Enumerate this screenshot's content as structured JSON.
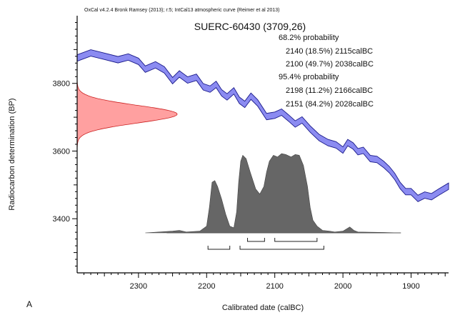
{
  "chart_data": {
    "type": "area",
    "header": "OxCal v4.2.4 Bronk Ramsey (2013); r:5; IntCal13 atmospheric curve (Reimer et al 2013)",
    "title": "SUERC-60430 (3709,26)",
    "xlabel": "Calibrated date (calBC)",
    "ylabel": "Radiocarbon determination (BP)",
    "panel_label": "A",
    "xlim": [
      2390,
      1845
    ],
    "ylim": [
      3240,
      4000
    ],
    "x_ticks": [
      2300,
      2200,
      2100,
      2000,
      1900
    ],
    "y_ticks": [
      3400,
      3600,
      3800
    ],
    "annotations": [
      "68.2% probability",
      "2140 (18.5%) 2115calBC",
      "2100 (49.7%) 2038calBC",
      "95.4% probability",
      "2198 (11.2%) 2166calBC",
      "2151 (84.2%) 2028calBC"
    ],
    "measurement": {
      "mean": 3709,
      "sd": 26
    },
    "ranges_68": [
      [
        2140,
        2115
      ],
      [
        2100,
        2038
      ]
    ],
    "ranges_95": [
      [
        2198,
        2166
      ],
      [
        2151,
        2028
      ]
    ],
    "calibration_curve": {
      "name": "IntCal13",
      "color": "#6666ee",
      "points": [
        [
          2390,
          3875
        ],
        [
          2370,
          3890
        ],
        [
          2350,
          3880
        ],
        [
          2330,
          3870
        ],
        [
          2315,
          3878
        ],
        [
          2300,
          3865
        ],
        [
          2290,
          3842
        ],
        [
          2275,
          3855
        ],
        [
          2262,
          3840
        ],
        [
          2250,
          3808
        ],
        [
          2240,
          3828
        ],
        [
          2228,
          3810
        ],
        [
          2215,
          3818
        ],
        [
          2205,
          3790
        ],
        [
          2195,
          3783
        ],
        [
          2186,
          3797
        ],
        [
          2178,
          3772
        ],
        [
          2170,
          3760
        ],
        [
          2160,
          3778
        ],
        [
          2152,
          3750
        ],
        [
          2144,
          3738
        ],
        [
          2135,
          3762
        ],
        [
          2125,
          3742
        ],
        [
          2112,
          3702
        ],
        [
          2100,
          3706
        ],
        [
          2090,
          3715
        ],
        [
          2080,
          3698
        ],
        [
          2070,
          3680
        ],
        [
          2060,
          3692
        ],
        [
          2048,
          3665
        ],
        [
          2035,
          3640
        ],
        [
          2022,
          3625
        ],
        [
          2010,
          3618
        ],
        [
          2000,
          3603
        ],
        [
          1993,
          3625
        ],
        [
          1985,
          3615
        ],
        [
          1978,
          3598
        ],
        [
          1970,
          3602
        ],
        [
          1960,
          3578
        ],
        [
          1950,
          3575
        ],
        [
          1940,
          3560
        ],
        [
          1932,
          3545
        ],
        [
          1924,
          3525
        ],
        [
          1916,
          3498
        ],
        [
          1908,
          3480
        ],
        [
          1900,
          3480
        ],
        [
          1890,
          3460
        ],
        [
          1880,
          3470
        ],
        [
          1870,
          3465
        ],
        [
          1860,
          3478
        ],
        [
          1845,
          3496
        ]
      ]
    },
    "calibrated_distribution": {
      "color": "#666666",
      "points": [
        [
          2290,
          0
        ],
        [
          2250,
          0.02
        ],
        [
          2240,
          0.03
        ],
        [
          2230,
          0.01
        ],
        [
          2210,
          0.02
        ],
        [
          2200,
          0.08
        ],
        [
          2196,
          0.3
        ],
        [
          2192,
          0.6
        ],
        [
          2188,
          0.62
        ],
        [
          2184,
          0.55
        ],
        [
          2178,
          0.4
        ],
        [
          2172,
          0.22
        ],
        [
          2166,
          0.08
        ],
        [
          2160,
          0.06
        ],
        [
          2156,
          0.25
        ],
        [
          2153,
          0.6
        ],
        [
          2150,
          0.85
        ],
        [
          2147,
          0.92
        ],
        [
          2142,
          0.88
        ],
        [
          2136,
          0.72
        ],
        [
          2128,
          0.52
        ],
        [
          2122,
          0.46
        ],
        [
          2116,
          0.55
        ],
        [
          2112,
          0.72
        ],
        [
          2108,
          0.85
        ],
        [
          2102,
          0.92
        ],
        [
          2096,
          0.9
        ],
        [
          2090,
          0.94
        ],
        [
          2084,
          0.93
        ],
        [
          2076,
          0.9
        ],
        [
          2070,
          0.93
        ],
        [
          2064,
          0.92
        ],
        [
          2058,
          0.8
        ],
        [
          2052,
          0.55
        ],
        [
          2048,
          0.3
        ],
        [
          2044,
          0.15
        ],
        [
          2038,
          0.08
        ],
        [
          2030,
          0.03
        ],
        [
          2020,
          0.02
        ],
        [
          2012,
          0.01
        ],
        [
          2000,
          0.02
        ],
        [
          1994,
          0.05
        ],
        [
          1990,
          0.07
        ],
        [
          1984,
          0.03
        ],
        [
          1978,
          0.01
        ],
        [
          1940,
          0.005
        ],
        [
          1915,
          0
        ]
      ]
    },
    "colors": {
      "curve_fill": "#7777ee",
      "curve_stroke": "#1a1a8a",
      "measurement_fill": "#ff8080",
      "measurement_stroke": "#cc2222",
      "distribution_fill": "#666666"
    }
  }
}
